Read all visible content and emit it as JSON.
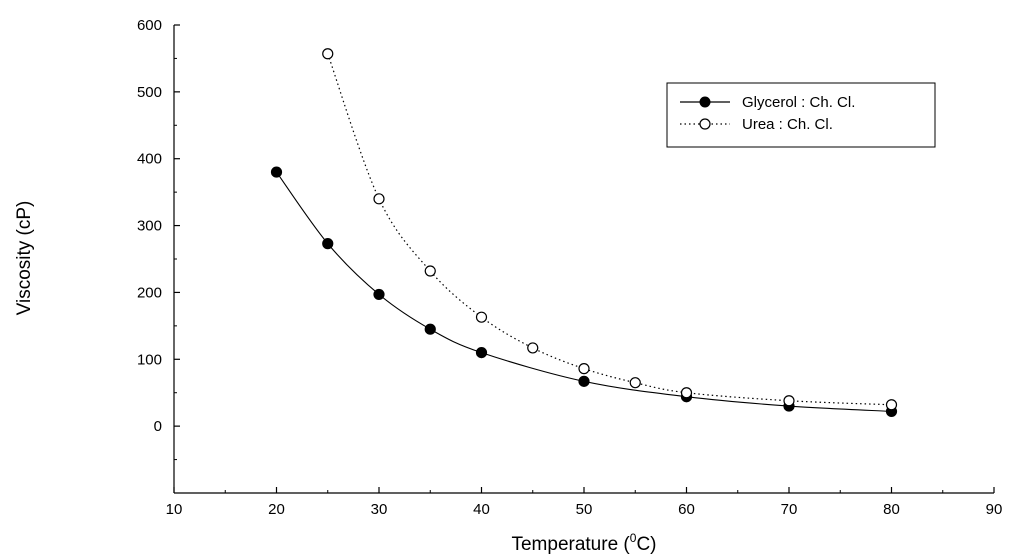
{
  "chart_data": {
    "type": "line",
    "xlabel": "Temperature (",
    "xlabel_sup": "0",
    "xlabel_tail": "C)",
    "ylabel": "Viscosity (cP)",
    "xlim": [
      10,
      90
    ],
    "ylim": [
      -100,
      600
    ],
    "x_ticks": [
      10,
      20,
      30,
      40,
      50,
      60,
      70,
      80,
      90
    ],
    "y_ticks": [
      0,
      100,
      200,
      300,
      400,
      500,
      600
    ],
    "grid": false,
    "legend_position": "top-right",
    "series": [
      {
        "name": "Glycerol : Ch. Cl.",
        "marker": "filled-circle",
        "line_style": "solid",
        "x": [
          20,
          25,
          30,
          35,
          40,
          50,
          60,
          70,
          80
        ],
        "y": [
          380,
          273,
          197,
          145,
          110,
          67,
          44,
          30,
          22
        ]
      },
      {
        "name": "Urea : Ch. Cl.",
        "marker": "open-circle",
        "line_style": "dotted",
        "x": [
          25,
          30,
          35,
          40,
          45,
          50,
          55,
          60,
          70,
          80
        ],
        "y": [
          557,
          340,
          232,
          163,
          117,
          86,
          65,
          50,
          38,
          32
        ]
      }
    ]
  }
}
